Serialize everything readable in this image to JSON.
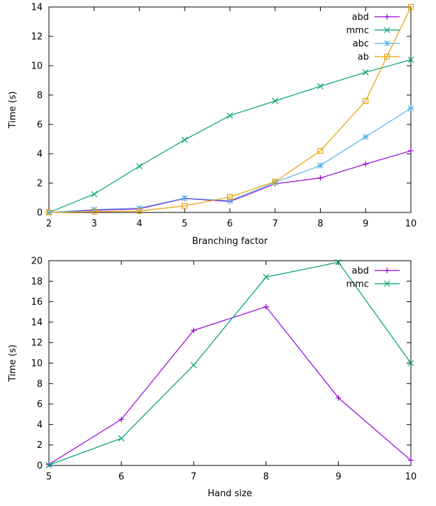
{
  "chart_data": [
    {
      "type": "line",
      "xlabel": "Branching factor",
      "ylabel": "Time (s)",
      "xlim": [
        2,
        10
      ],
      "ylim": [
        0,
        14
      ],
      "xticks": [
        "2",
        "3",
        "4",
        "5",
        "6",
        "7",
        "8",
        "9",
        "10"
      ],
      "yticks": [
        "0",
        "2",
        "4",
        "6",
        "8",
        "10",
        "12",
        "14"
      ],
      "legend_position": "top-right",
      "grid": false,
      "series": [
        {
          "name": "abd",
          "color": "#9400d3",
          "marker": "plus",
          "x": [
            2,
            3,
            4,
            5,
            6,
            7,
            8,
            9,
            10
          ],
          "y": [
            0.0,
            0.15,
            0.25,
            0.95,
            0.75,
            1.95,
            2.35,
            3.3,
            4.2
          ]
        },
        {
          "name": "mmc",
          "color": "#009e73",
          "marker": "cross",
          "x": [
            2,
            3,
            4,
            5,
            6,
            7,
            8,
            9,
            10
          ],
          "y": [
            0.0,
            1.25,
            3.15,
            4.95,
            6.6,
            7.6,
            8.6,
            9.55,
            10.4
          ]
        },
        {
          "name": "abc",
          "color": "#56b4e9",
          "marker": "star",
          "x": [
            2,
            3,
            4,
            5,
            6,
            7,
            8,
            9,
            10
          ],
          "y": [
            0.0,
            0.2,
            0.3,
            0.98,
            0.8,
            2.05,
            3.2,
            5.15,
            7.1
          ]
        },
        {
          "name": "ab",
          "color": "#e69f00",
          "marker": "square",
          "x": [
            2,
            3,
            4,
            5,
            6,
            7,
            8,
            9,
            10
          ],
          "y": [
            0.0,
            0.05,
            0.1,
            0.45,
            1.05,
            2.1,
            4.2,
            7.6,
            14.0
          ]
        }
      ]
    },
    {
      "type": "line",
      "xlabel": "Hand size",
      "ylabel": "Time (s)",
      "xlim": [
        5,
        10
      ],
      "ylim": [
        0,
        20
      ],
      "xticks": [
        "5",
        "6",
        "7",
        "8",
        "9",
        "10"
      ],
      "yticks": [
        "0",
        "2",
        "4",
        "6",
        "8",
        "10",
        "12",
        "14",
        "16",
        "18",
        "20"
      ],
      "legend_position": "top-right",
      "grid": false,
      "series": [
        {
          "name": "abd",
          "color": "#9400d3",
          "marker": "plus",
          "x": [
            5,
            6,
            7,
            8,
            9,
            10
          ],
          "y": [
            0.1,
            4.5,
            13.2,
            15.5,
            6.6,
            0.5
          ]
        },
        {
          "name": "mmc",
          "color": "#009e73",
          "marker": "cross",
          "x": [
            5,
            6,
            7,
            8,
            9,
            10
          ],
          "y": [
            0.05,
            2.65,
            9.8,
            18.4,
            19.85,
            10.0
          ]
        }
      ]
    }
  ]
}
